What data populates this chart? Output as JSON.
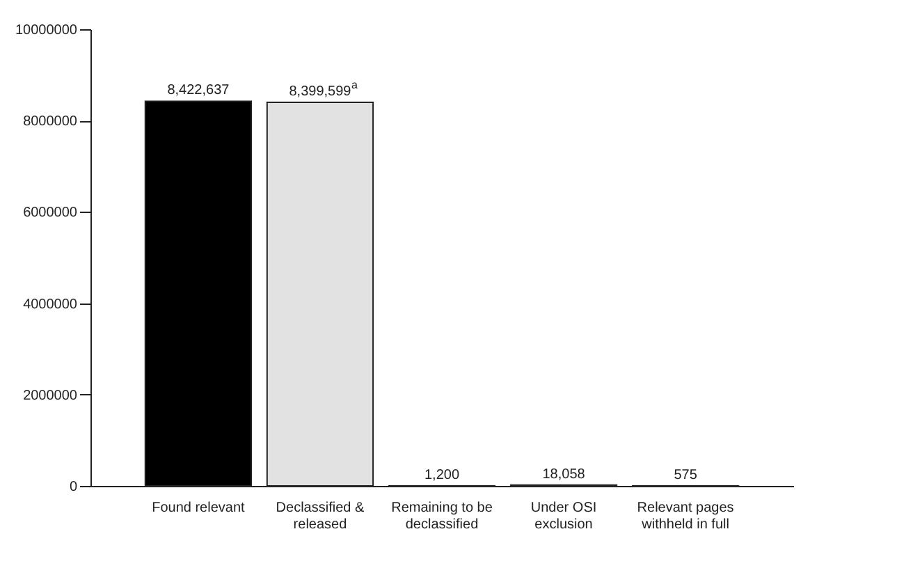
{
  "chart_data": {
    "type": "bar",
    "categories": [
      "Found relevant",
      "Declassified & released",
      "Remaining to be declassified",
      "Under OSI exclusion",
      "Relevant pages withheld in full"
    ],
    "values": [
      8422637,
      8399599,
      1200,
      18058,
      575
    ],
    "colors": [
      "#000000",
      "#e2e2e2",
      "#555555",
      "#555555",
      "#555555"
    ],
    "value_labels": [
      "8,422,637",
      "8,399,599$^{a}$",
      "1,200",
      "18,058",
      "575"
    ],
    "ylim": [
      0,
      10000000
    ],
    "yticks": [
      0,
      2000000,
      4000000,
      6000000,
      8000000,
      10000000
    ],
    "grid": false
  }
}
